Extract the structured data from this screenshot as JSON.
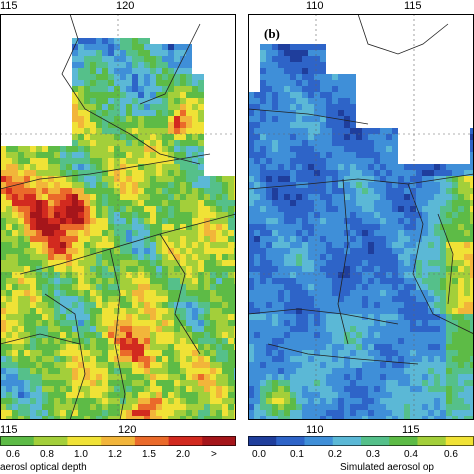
{
  "panels": [
    {
      "id": "a",
      "letter": "",
      "lon_ticks_top": [
        "115",
        "120"
      ],
      "lon_ticks_bottom": [
        "115",
        "120"
      ]
    },
    {
      "id": "b",
      "letter": "(b)",
      "lon_ticks_top": [
        "110",
        "115"
      ],
      "lon_ticks_bottom": [
        "110",
        "115"
      ]
    }
  ],
  "colorbar_a": {
    "labels": [
      "0.6",
      "0.8",
      "1.0",
      "1.2",
      "1.5",
      "2.0",
      ">"
    ],
    "caption": "aerosl optical depth"
  },
  "colorbar_b": {
    "labels": [
      "0.0",
      "0.1",
      "0.2",
      "0.3",
      "0.4",
      "0.6"
    ],
    "caption": "Simulated aerosol op"
  },
  "colors": {
    "levels": [
      "#1f3e9c",
      "#2e64c8",
      "#3f8fd8",
      "#5bb8d6",
      "#55c08a",
      "#5dbb46",
      "#a3cf3a",
      "#f0e236",
      "#f2b53a",
      "#ea6a2a",
      "#d22a1f",
      "#a5151a"
    ],
    "missing": "#ffffff",
    "border": "#222222"
  }
}
